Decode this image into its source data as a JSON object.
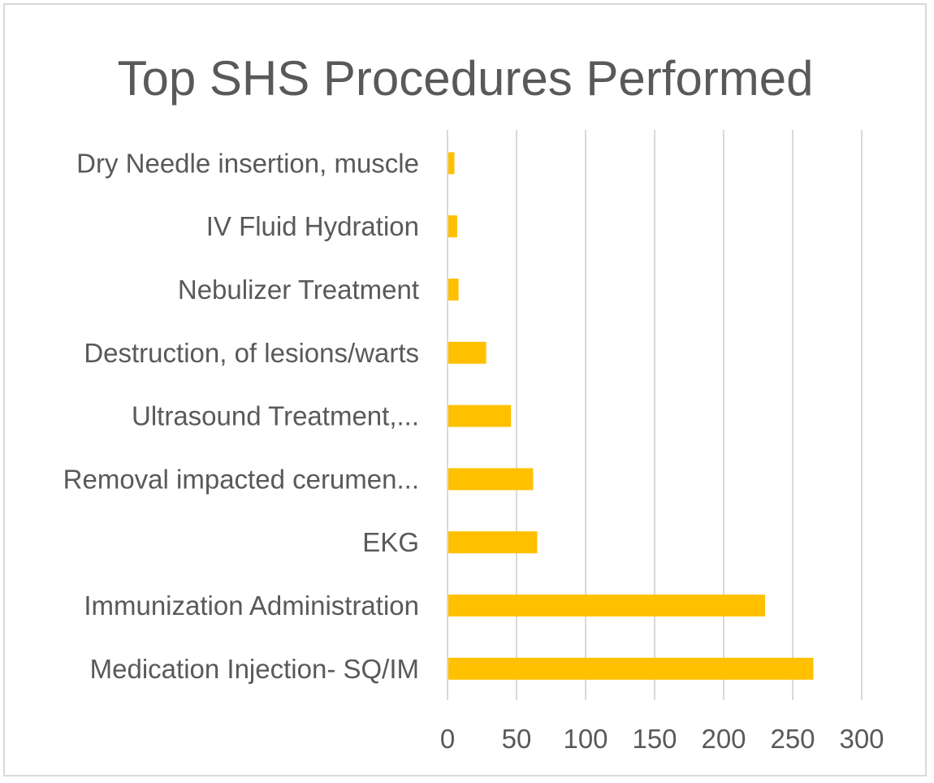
{
  "chart_data": {
    "type": "bar",
    "orientation": "horizontal",
    "title": "Top SHS Procedures Performed",
    "categories": [
      "Dry Needle insertion, muscle",
      "IV Fluid Hydration",
      "Nebulizer Treatment",
      "Destruction, of lesions/warts",
      "Ultrasound Treatment,...",
      "Removal impacted cerumen...",
      "EKG",
      "Immunization Administration",
      "Medication Injection- SQ/IM"
    ],
    "values": [
      5,
      7,
      8,
      28,
      46,
      62,
      65,
      230,
      265
    ],
    "xlim": [
      0,
      300
    ],
    "xticks": [
      "0",
      "50",
      "100",
      "150",
      "200",
      "250",
      "300"
    ],
    "grid": true,
    "legend": "none",
    "bar_color": "#FFC000",
    "grid_color": "#d9d9d9",
    "text_color": "#595959"
  }
}
